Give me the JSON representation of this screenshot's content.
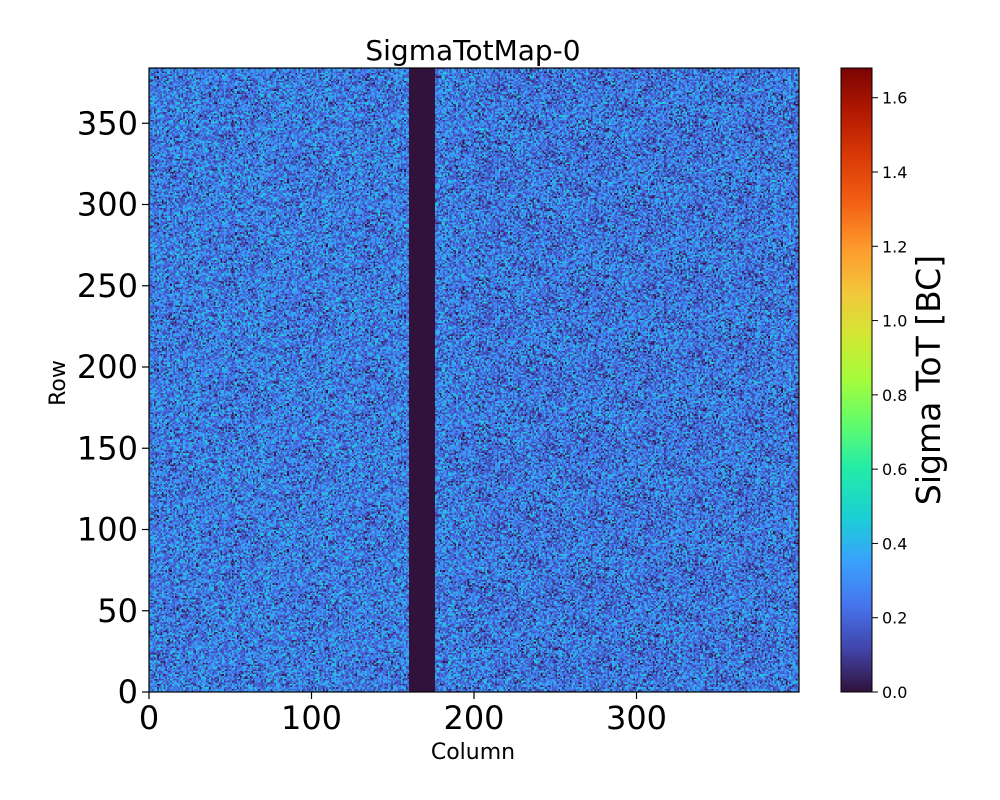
{
  "chart_data": {
    "type": "heatmap",
    "title": "SigmaTotMap-0",
    "xlabel": "Column",
    "ylabel": "Row",
    "xlim": [
      0,
      400
    ],
    "ylim": [
      0,
      384
    ],
    "x_ticks": [
      0,
      100,
      200,
      300
    ],
    "y_ticks": [
      0,
      50,
      100,
      150,
      200,
      250,
      300,
      350
    ],
    "colorbar": {
      "label": "Sigma ToT [BC]",
      "range": [
        0.0,
        1.68
      ],
      "ticks": [
        "0.0",
        "0.2",
        "0.4",
        "0.6",
        "0.8",
        "1.0",
        "1.2",
        "1.4",
        "1.6"
      ],
      "colormap": "turbo"
    },
    "dead_columns": [
      160,
      176
    ],
    "typical_value_range": [
      0.1,
      0.45
    ],
    "grid": false
  }
}
